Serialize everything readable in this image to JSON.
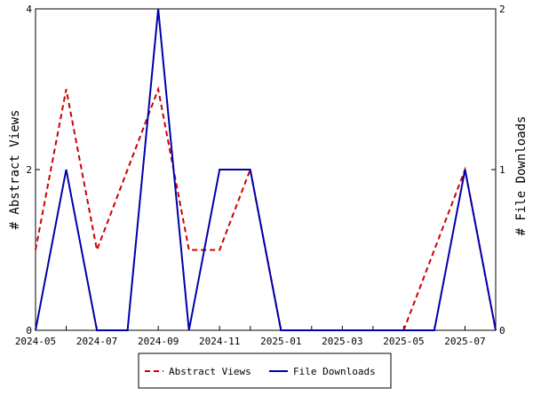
{
  "chart_data": {
    "type": "line",
    "x": [
      "2024-05",
      "2024-06",
      "2024-07",
      "2024-08",
      "2024-09",
      "2024-10",
      "2024-11",
      "2024-12",
      "2025-01",
      "2025-02",
      "2025-03",
      "2025-04",
      "2025-05",
      "2025-06",
      "2025-07",
      "2025-08"
    ],
    "x_tick_labels": [
      "2024-05",
      "2024-07",
      "2024-09",
      "2024-11",
      "2025-01",
      "2025-03",
      "2025-05",
      "2025-07"
    ],
    "series": [
      {
        "name": "Abstract Views",
        "axis": "left",
        "color": "#cc0000",
        "style": "dashed",
        "values": [
          1,
          3,
          1,
          2,
          3,
          1,
          1,
          2,
          0,
          0,
          0,
          0,
          0,
          1,
          2,
          0
        ]
      },
      {
        "name": "File Downloads",
        "axis": "right",
        "color": "#0000aa",
        "style": "solid",
        "values": [
          0,
          1,
          0,
          0,
          2,
          0,
          1,
          1,
          0,
          0,
          0,
          0,
          0,
          0,
          1,
          0
        ]
      }
    ],
    "ylabel": "# Abstract Views",
    "y2label": "# File Downloads",
    "ylim": [
      0,
      4
    ],
    "y2lim": [
      0,
      2
    ],
    "y_ticks": [
      "0",
      "2",
      "4"
    ],
    "y2_ticks": [
      "0",
      "1",
      "2"
    ],
    "grid": false,
    "legend_position": "bottom-center"
  }
}
